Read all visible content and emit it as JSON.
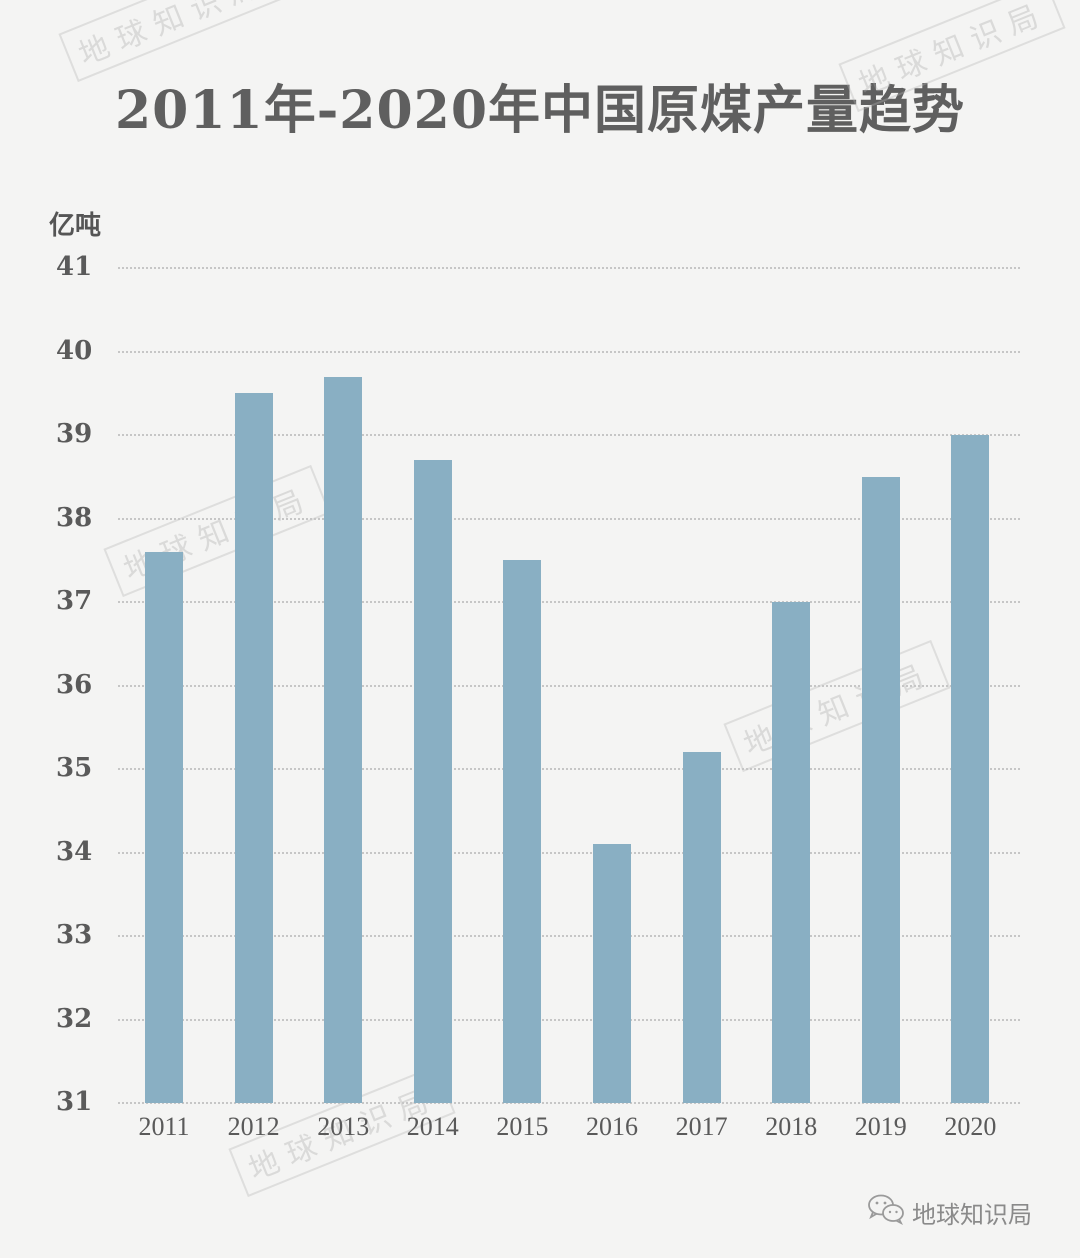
{
  "title": "2011年-2020年中国原煤产量趋势",
  "unit_label": "亿吨",
  "footer": {
    "brand": "地球知识局",
    "icon": "wechat-icon"
  },
  "watermark_text": "地球知识局",
  "colors": {
    "bar": "#89afc3",
    "background": "#f4f4f3",
    "text": "#5a5a5a",
    "grid": "#c6c6c6"
  },
  "chart_data": {
    "type": "bar",
    "title": "2011年-2020年中国原煤产量趋势",
    "xlabel": "",
    "ylabel": "亿吨",
    "categories": [
      "2011",
      "2012",
      "2013",
      "2014",
      "2015",
      "2016",
      "2017",
      "2018",
      "2019",
      "2020"
    ],
    "values": [
      37.6,
      39.5,
      39.7,
      38.7,
      37.5,
      34.1,
      35.2,
      37.0,
      38.5,
      39.0
    ],
    "ylim": [
      31,
      41
    ],
    "yticks": [
      "31",
      "32",
      "33",
      "34",
      "35",
      "36",
      "37",
      "38",
      "39",
      "40",
      "41"
    ],
    "grid": true,
    "grid_style": "dotted horizontal",
    "legend": "none"
  }
}
